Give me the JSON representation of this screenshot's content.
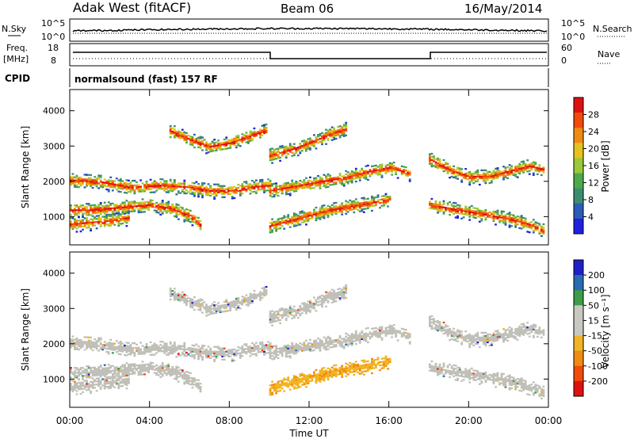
{
  "header": {
    "station": "Adak West (fitACF)",
    "beam": "Beam 06",
    "date": "16/May/2014"
  },
  "strips": {
    "nsky_label": "N.Sky",
    "nsky_ticks": [
      "10^5",
      "10^0"
    ],
    "nsearch_label": "N.Search",
    "nsearch_ticks": [
      "10^5",
      "10^0"
    ],
    "freq_label": "Freq.",
    "freq_unit": "[MHz]",
    "freq_ticks": [
      "18",
      "8"
    ],
    "nave_label": "Nave",
    "nave_ticks": [
      "60",
      "0"
    ],
    "cpid_label": "CPID",
    "cpid_value": "normalsound (fast) 157 RF"
  },
  "colors": {
    "power": [
      "#2020e0",
      "#2a5cb8",
      "#3c8c70",
      "#4caa4c",
      "#9ac83a",
      "#e6c21e",
      "#f08a12",
      "#f24a08",
      "#e01010"
    ],
    "velocity": [
      "#e01010",
      "#f24a08",
      "#f08a12",
      "#f2b424",
      "#c8c8c0",
      "#c8c8c0",
      "#3c9c48",
      "#2a6ab0",
      "#2020c8"
    ],
    "ground": "#c0c0b8"
  },
  "chart_data": [
    {
      "type": "heatmap",
      "name": "power",
      "ylabel": "Slant Range [km]",
      "yticks": [
        1000,
        2000,
        3000,
        4000
      ],
      "ylim": [
        200,
        4600
      ],
      "xlim_hours": [
        0,
        24
      ],
      "colorbar_label": "Power [dB]",
      "colorbar_ticks": [
        4,
        8,
        12,
        16,
        20,
        24,
        28
      ],
      "colorbar_range": [
        0,
        30
      ],
      "bands": [
        {
          "x": [
            0,
            1.5,
            3,
            4.5,
            6,
            7,
            8,
            9,
            10
          ],
          "y": [
            2000,
            1950,
            1800,
            1850,
            1800,
            1700,
            1700,
            1800,
            1850
          ]
        },
        {
          "x": [
            0,
            1,
            2,
            3,
            4,
            5,
            6,
            6.5
          ],
          "y": [
            1150,
            1150,
            1200,
            1250,
            1300,
            1200,
            1000,
            750
          ]
        },
        {
          "x": [
            0,
            1,
            2,
            3
          ],
          "y": [
            750,
            800,
            850,
            950
          ]
        },
        {
          "x": [
            5,
            6,
            7,
            8,
            9,
            9.8
          ],
          "y": [
            3400,
            3150,
            2950,
            3050,
            3250,
            3400
          ]
        },
        {
          "x": [
            10,
            11,
            12,
            13,
            14,
            15,
            16,
            17
          ],
          "y": [
            1700,
            1800,
            1900,
            2000,
            2100,
            2250,
            2350,
            2200
          ]
        },
        {
          "x": [
            10,
            11,
            12,
            13,
            14,
            15,
            16
          ],
          "y": [
            700,
            850,
            1000,
            1150,
            1250,
            1350,
            1450
          ]
        },
        {
          "x": [
            10,
            11,
            12,
            13,
            13.8
          ],
          "y": [
            2700,
            2850,
            3050,
            3300,
            3450
          ]
        },
        {
          "x": [
            18,
            19,
            20,
            21,
            22,
            23,
            23.8
          ],
          "y": [
            2600,
            2300,
            2100,
            2100,
            2250,
            2400,
            2300
          ]
        },
        {
          "x": [
            18,
            19,
            20,
            21,
            22,
            23,
            23.8
          ],
          "y": [
            1300,
            1200,
            1100,
            1000,
            900,
            750,
            550
          ]
        }
      ]
    },
    {
      "type": "heatmap",
      "name": "velocity",
      "ylabel": "Slant Range [km]",
      "yticks": [
        1000,
        2000,
        3000,
        4000
      ],
      "ylim": [
        200,
        4600
      ],
      "xlim_hours": [
        0,
        24
      ],
      "colorbar_label": "Velocity [m s⁻¹]",
      "colorbar_ticks": [
        "200",
        "100",
        "50",
        "15",
        "-15",
        "-50",
        "-100",
        "-200"
      ]
    }
  ],
  "time_axis": {
    "ticks": [
      "00:00",
      "04:00",
      "08:00",
      "12:00",
      "16:00",
      "20:00",
      "00:00"
    ],
    "label": "Time UT"
  }
}
